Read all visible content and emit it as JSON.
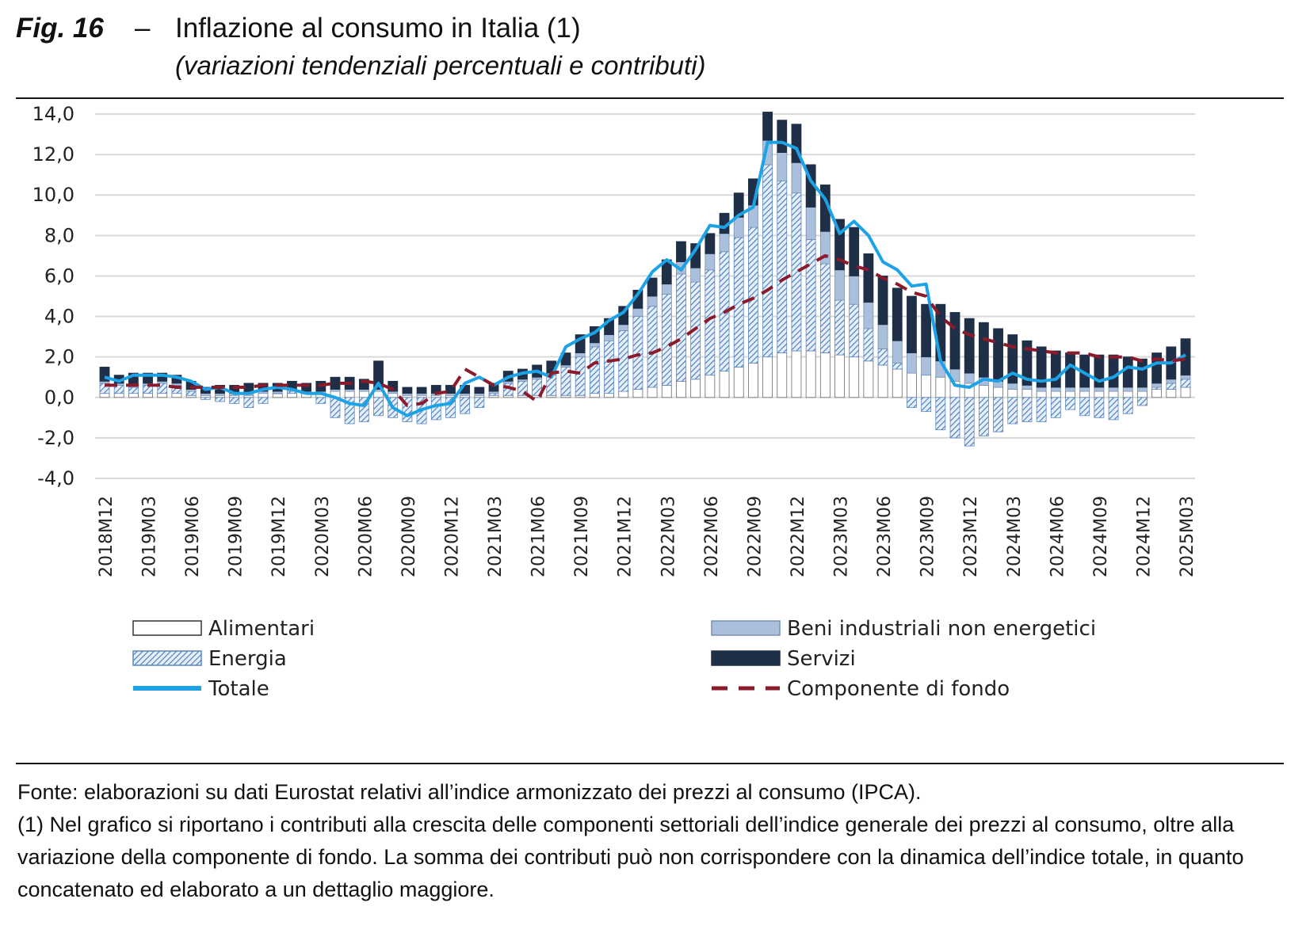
{
  "figure": {
    "number": "Fig. 16",
    "dash": "–",
    "title": "Inflazione al consumo in Italia (1)",
    "subtitle": "(variazioni tendenziali percentuali e contributi)"
  },
  "notes": {
    "source": "Fonte: elaborazioni su dati Eurostat relativi all’indice armonizzato dei prezzi al consumo (IPCA).",
    "footnote": "(1) Nel grafico si riportano i contributi alla crescita delle componenti settoriali dell’indice generale dei prezzi al consumo, oltre alla variazione della componente di fondo. La somma dei contributi può non corrispondere con la dinamica dell’indice totale, in quanto concatenato ed elaborato a un dettaglio maggiore."
  },
  "colors": {
    "alimentari": "#ffffff",
    "energia": "#7fa6d3",
    "beni": "#a9bfdc",
    "servizi": "#1f2f47",
    "totale": "#1ea2e6",
    "fondo": "#8b1a2b",
    "grid": "#d9d9d9"
  },
  "chart_data": {
    "type": "bar",
    "stacked": true,
    "title": "",
    "xlabel": "",
    "ylabel": "",
    "ylim": [
      -4,
      14
    ],
    "yticks": [
      "14,0",
      "12,0",
      "10,0",
      "8,0",
      "6,0",
      "4,0",
      "2,0",
      "0,0",
      "-2,0",
      "-4,0"
    ],
    "ytick_values": [
      14,
      12,
      10,
      8,
      6,
      4,
      2,
      0,
      -2,
      -4
    ],
    "grid": true,
    "legend_position": "bottom",
    "x_tick_labels": [
      "2018M12",
      "2019M03",
      "2019M06",
      "2019M09",
      "2019M12",
      "2020M03",
      "2020M06",
      "2020M09",
      "2020M12",
      "2021M03",
      "2021M06",
      "2021M09",
      "2021M12",
      "2022M03",
      "2022M06",
      "2022M09",
      "2022M12",
      "2023M03",
      "2023M06",
      "2023M09",
      "2023M12",
      "2024M03",
      "2024M06",
      "2024M09",
      "2024M12",
      "2025M03"
    ],
    "categories": [
      "2018M12",
      "2019M01",
      "2019M02",
      "2019M03",
      "2019M04",
      "2019M05",
      "2019M06",
      "2019M07",
      "2019M08",
      "2019M09",
      "2019M10",
      "2019M11",
      "2019M12",
      "2020M01",
      "2020M02",
      "2020M03",
      "2020M04",
      "2020M05",
      "2020M06",
      "2020M07",
      "2020M08",
      "2020M09",
      "2020M10",
      "2020M11",
      "2020M12",
      "2021M01",
      "2021M02",
      "2021M03",
      "2021M04",
      "2021M05",
      "2021M06",
      "2021M07",
      "2021M08",
      "2021M09",
      "2021M10",
      "2021M11",
      "2021M12",
      "2022M01",
      "2022M02",
      "2022M03",
      "2022M04",
      "2022M05",
      "2022M06",
      "2022M07",
      "2022M08",
      "2022M09",
      "2022M10",
      "2022M11",
      "2022M12",
      "2023M01",
      "2023M02",
      "2023M03",
      "2023M04",
      "2023M05",
      "2023M06",
      "2023M07",
      "2023M08",
      "2023M09",
      "2023M10",
      "2023M11",
      "2023M12",
      "2024M01",
      "2024M02",
      "2024M03",
      "2024M04",
      "2024M05",
      "2024M06",
      "2024M07",
      "2024M08",
      "2024M09",
      "2024M10",
      "2024M11",
      "2024M12",
      "2025M01",
      "2025M02",
      "2025M03"
    ],
    "series": [
      {
        "name": "Alimentari",
        "kind": "bar",
        "values": [
          0.2,
          0.2,
          0.2,
          0.2,
          0.2,
          0.2,
          0.1,
          0.1,
          0.1,
          0.1,
          0.1,
          0.2,
          0.2,
          0.2,
          0.2,
          0.2,
          0.3,
          0.3,
          0.3,
          0.3,
          0.2,
          0.1,
          0.1,
          0.1,
          0.1,
          0.1,
          0.1,
          0.1,
          0.1,
          0.1,
          0.1,
          0.1,
          0.1,
          0.1,
          0.2,
          0.2,
          0.3,
          0.4,
          0.5,
          0.6,
          0.8,
          0.9,
          1.1,
          1.3,
          1.5,
          1.7,
          2.0,
          2.2,
          2.3,
          2.3,
          2.2,
          2.1,
          2.0,
          1.8,
          1.6,
          1.4,
          1.2,
          1.1,
          1.0,
          0.8,
          0.7,
          0.6,
          0.5,
          0.4,
          0.4,
          0.3,
          0.3,
          0.3,
          0.3,
          0.3,
          0.3,
          0.3,
          0.3,
          0.4,
          0.4,
          0.5
        ]
      },
      {
        "name": "Energia",
        "kind": "bar",
        "values": [
          0.5,
          0.4,
          0.3,
          0.4,
          0.5,
          0.4,
          0.2,
          -0.1,
          -0.2,
          -0.3,
          -0.5,
          -0.3,
          0.0,
          0.1,
          0.0,
          -0.3,
          -1.0,
          -1.3,
          -1.2,
          -0.9,
          -1.0,
          -1.2,
          -1.3,
          -1.1,
          -1.0,
          -0.8,
          -0.5,
          0.1,
          0.6,
          0.7,
          0.8,
          1.0,
          1.4,
          1.9,
          2.3,
          2.6,
          3.0,
          3.6,
          4.0,
          4.5,
          5.3,
          4.8,
          5.2,
          5.9,
          6.4,
          6.7,
          9.5,
          8.5,
          7.8,
          5.5,
          4.4,
          2.7,
          2.6,
          1.6,
          0.8,
          0.3,
          -0.5,
          -0.7,
          -1.6,
          -2.0,
          -2.4,
          -1.9,
          -1.7,
          -1.3,
          -1.2,
          -1.2,
          -1.0,
          -0.6,
          -0.9,
          -1.0,
          -1.1,
          -0.8,
          -0.4,
          0.1,
          0.3,
          0.4
        ]
      },
      {
        "name": "Beni industriali non energetici",
        "kind": "bar",
        "values": [
          0.1,
          0.1,
          0.1,
          0.1,
          0.1,
          0.1,
          0.1,
          0.1,
          0.1,
          0.1,
          0.1,
          0.1,
          0.1,
          0.1,
          0.1,
          0.1,
          0.1,
          0.1,
          0.1,
          0.1,
          0.1,
          0.1,
          0.1,
          0.1,
          0.1,
          0.1,
          0.1,
          0.1,
          0.1,
          0.1,
          0.1,
          0.1,
          0.1,
          0.2,
          0.2,
          0.3,
          0.3,
          0.4,
          0.5,
          0.5,
          0.6,
          0.7,
          0.8,
          0.9,
          1.0,
          1.1,
          1.2,
          1.4,
          1.5,
          1.6,
          1.6,
          1.5,
          1.4,
          1.3,
          1.2,
          1.1,
          1.0,
          0.9,
          0.8,
          0.6,
          0.5,
          0.4,
          0.3,
          0.3,
          0.2,
          0.2,
          0.2,
          0.2,
          0.2,
          0.2,
          0.2,
          0.2,
          0.2,
          0.2,
          0.2,
          0.2
        ]
      },
      {
        "name": "Servizi",
        "kind": "bar",
        "values": [
          0.7,
          0.4,
          0.6,
          0.5,
          0.4,
          0.4,
          0.4,
          0.3,
          0.4,
          0.4,
          0.5,
          0.4,
          0.4,
          0.4,
          0.4,
          0.5,
          0.6,
          0.6,
          0.5,
          1.4,
          0.5,
          0.3,
          0.3,
          0.4,
          0.4,
          0.4,
          0.3,
          0.4,
          0.5,
          0.5,
          0.6,
          0.6,
          0.6,
          0.9,
          0.8,
          0.8,
          0.9,
          0.9,
          0.9,
          1.2,
          1.0,
          1.2,
          1.0,
          1.0,
          1.2,
          1.3,
          1.4,
          1.6,
          1.9,
          2.1,
          2.3,
          2.5,
          2.4,
          2.4,
          2.4,
          2.6,
          2.8,
          2.6,
          2.8,
          2.8,
          2.7,
          2.7,
          2.6,
          2.4,
          2.2,
          2.0,
          1.8,
          1.7,
          1.6,
          1.6,
          1.6,
          1.5,
          1.4,
          1.5,
          1.6,
          1.8
        ]
      },
      {
        "name": "Totale",
        "kind": "line",
        "values": [
          1.0,
          0.8,
          1.1,
          1.1,
          1.1,
          1.0,
          0.8,
          0.4,
          0.5,
          0.2,
          0.2,
          0.4,
          0.5,
          0.4,
          0.2,
          0.2,
          0.0,
          -0.3,
          -0.4,
          0.7,
          -0.5,
          -0.9,
          -0.6,
          -0.4,
          -0.3,
          0.7,
          1.0,
          0.6,
          1.0,
          1.2,
          1.3,
          1.0,
          2.5,
          2.9,
          3.2,
          3.8,
          4.2,
          5.1,
          6.2,
          6.8,
          6.3,
          7.3,
          8.5,
          8.4,
          9.0,
          9.4,
          12.6,
          12.6,
          12.3,
          10.7,
          9.8,
          8.1,
          8.7,
          8.0,
          6.7,
          6.3,
          5.5,
          5.6,
          1.8,
          0.6,
          0.5,
          0.9,
          0.8,
          1.2,
          0.9,
          0.8,
          0.9,
          1.6,
          1.2,
          0.8,
          1.0,
          1.5,
          1.4,
          1.7,
          1.7,
          2.1
        ]
      },
      {
        "name": "Componente di fondo",
        "kind": "line-dashed",
        "values": [
          0.6,
          0.6,
          0.6,
          0.6,
          0.6,
          0.5,
          0.5,
          0.5,
          0.5,
          0.5,
          0.5,
          0.6,
          0.6,
          0.6,
          0.6,
          0.6,
          0.7,
          0.7,
          0.8,
          0.7,
          0.4,
          -0.4,
          -0.3,
          0.2,
          0.3,
          1.4,
          1.0,
          0.6,
          0.5,
          0.3,
          -0.2,
          1.2,
          1.3,
          1.2,
          1.7,
          1.8,
          1.9,
          2.1,
          2.2,
          2.5,
          2.9,
          3.4,
          3.9,
          4.2,
          4.6,
          4.9,
          5.3,
          5.8,
          6.2,
          6.6,
          7.0,
          6.8,
          6.5,
          6.3,
          5.9,
          5.6,
          5.2,
          5.0,
          4.0,
          3.4,
          3.1,
          2.9,
          2.7,
          2.5,
          2.4,
          2.3,
          2.2,
          2.2,
          2.2,
          2.0,
          2.0,
          2.0,
          1.8,
          1.9,
          1.8,
          1.9
        ]
      }
    ]
  }
}
